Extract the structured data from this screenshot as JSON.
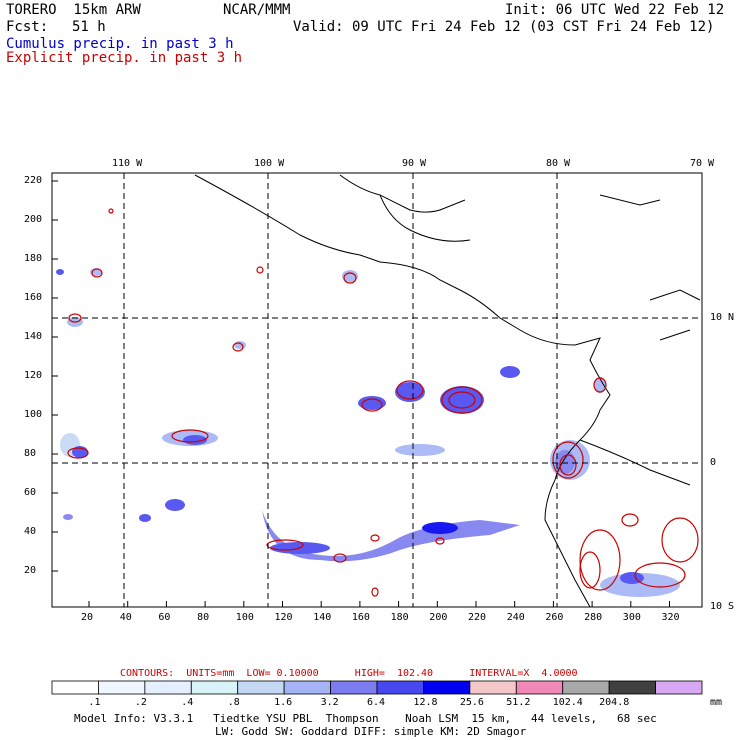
{
  "header": {
    "model": "TORERO  15km ARW",
    "org": "NCAR/MMM",
    "init": "Init: 06 UTC Wed 22 Feb 12",
    "fcst_label": "Fcst:",
    "fcst_value": "51 h",
    "valid": "Valid: 09 UTC Fri 24 Feb 12 (03 CST Fri 24 Feb 12)"
  },
  "legend_lines": {
    "cumulus": "Cumulus precip. in past 3 h",
    "explicit": "Explicit precip. in past 3 h",
    "cumulus_color": "#0000cc",
    "explicit_color": "#cc0000"
  },
  "map": {
    "lon_labels": [
      "110 W",
      "100 W",
      "90 W",
      "80 W",
      "70 W"
    ],
    "lat_labels": [
      "10 N",
      "0",
      "10 S"
    ],
    "y_ticks": [
      "220",
      "200",
      "180",
      "160",
      "140",
      "120",
      "100",
      "80",
      "60",
      "40",
      "20"
    ],
    "x_ticks": [
      "20",
      "40",
      "60",
      "80",
      "100",
      "120",
      "140",
      "160",
      "180",
      "200",
      "220",
      "240",
      "260",
      "280",
      "300",
      "320"
    ]
  },
  "contours_info": {
    "text": "CONTOURS:  UNITS=mm  LOW= 0.10000      HIGH=  102.40      INTERVAL=X  4.0000",
    "color": "#cc0000"
  },
  "colorbar": {
    "labels": [
      ".1",
      ".2",
      ".4",
      ".8",
      "1.6",
      "3.2",
      "6.4",
      "12.8",
      "25.6",
      "51.2",
      "102.4",
      "204.8"
    ],
    "unit": "mm",
    "colors": [
      "#ffffff",
      "#f0f6ff",
      "#e4f0ff",
      "#d8f4f8",
      "#c4d8f4",
      "#a4b4f4",
      "#7c7cf0",
      "#4848f0",
      "#0000f0",
      "#f4c8c8",
      "#f088b8",
      "#a8a8a8",
      "#404040",
      "#d8a8f4"
    ]
  },
  "footer": {
    "line1": "Model Info: V3.3.1   Tiedtke YSU PBL  Thompson    Noah LSM  15 km,   44 levels,   68 sec",
    "line2": "LW: Godd SW: Goddard DIFF: simple KM: 2D Smagor"
  }
}
